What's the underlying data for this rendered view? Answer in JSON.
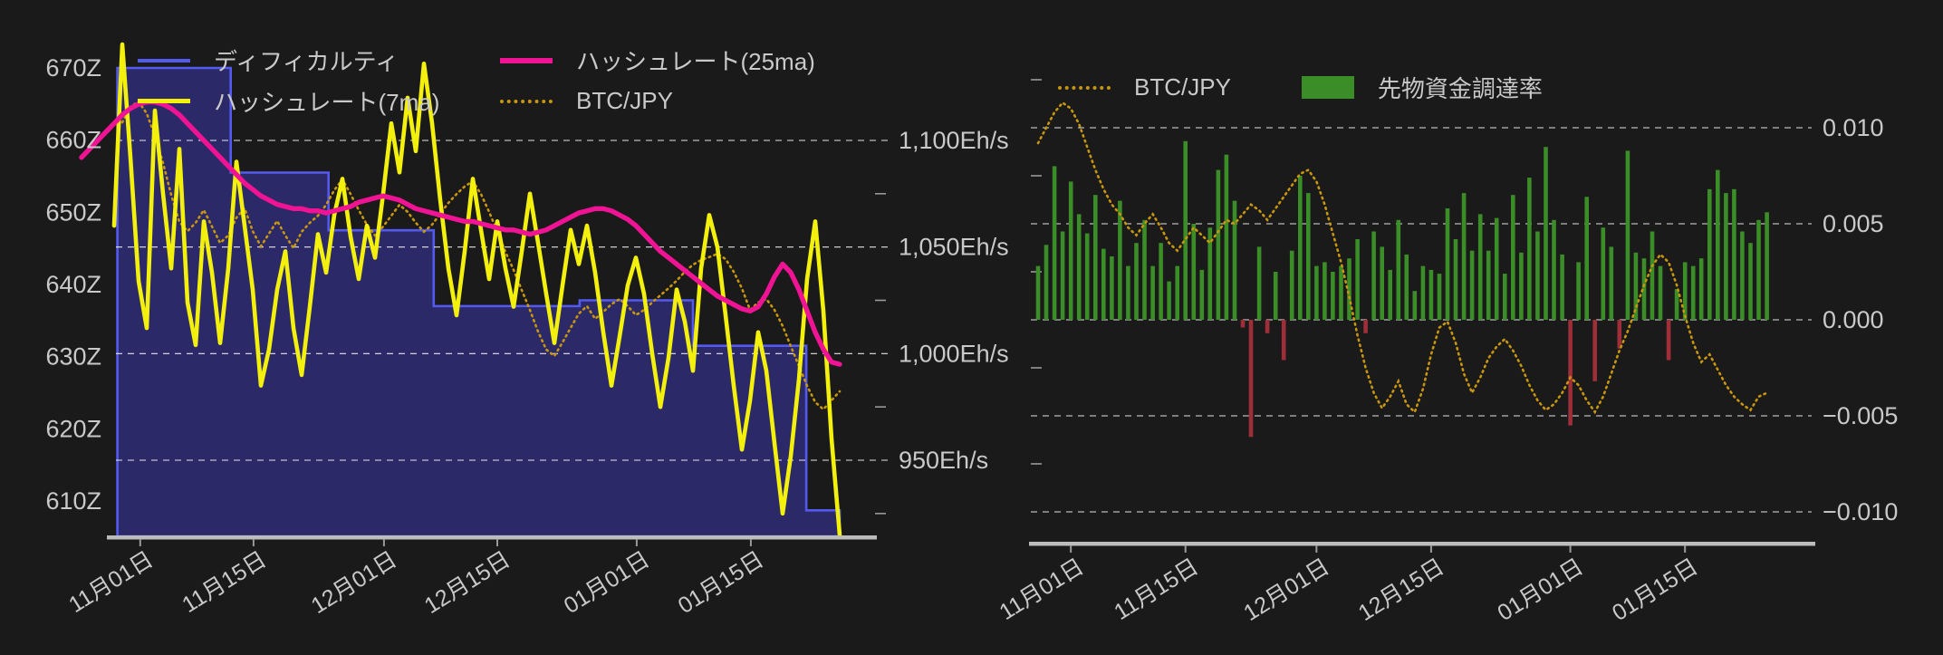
{
  "app": {
    "background_color": "#1a1a1a",
    "text_color": "#c9c9c9",
    "grid_color": "#ffffff",
    "axis_line_color": "#bcbcbc"
  },
  "left_chart": {
    "legend": {
      "difficulty": "ディフィカルティ",
      "hashrate_7ma": "ハッシュレート(7ma)",
      "hashrate_25ma": "ハッシュレート(25ma)",
      "btc_jpy": "BTC/JPY"
    }
  },
  "right_chart": {
    "legend": {
      "btc_jpy": "BTC/JPY",
      "funding_rate": "先物資金調達率"
    }
  },
  "chart_data": [
    {
      "id": "difficulty-hashrate-chart",
      "type": "line",
      "x_axis": {
        "tick_labels": [
          "11月01日",
          "11月15日",
          "12月01日",
          "12月15日",
          "01月01日",
          "01月15日"
        ],
        "tick_day_index": [
          7.2,
          21.1,
          37.1,
          51.0,
          68.1,
          82.1
        ],
        "total_days": 93
      },
      "left_y_axis": {
        "unit": "Z",
        "tick_labels": [
          "670Z",
          "660Z",
          "650Z",
          "640Z",
          "630Z",
          "620Z",
          "610Z"
        ],
        "tick_values": [
          670,
          660,
          650,
          640,
          630,
          620,
          610
        ]
      },
      "right_y_axis": {
        "unit": "Eh/s",
        "tick_labels": [
          "1,100Eh/s",
          "1,050Eh/s",
          "1,000Eh/s",
          "950Eh/s"
        ],
        "tick_values": [
          1100,
          1050,
          1000,
          950
        ],
        "minor_tick_values": [
          1075,
          1025,
          975,
          925
        ]
      },
      "series": [
        {
          "name": "ディフィカルティ",
          "type": "step_area",
          "axis": "left",
          "line_color": "#545af0",
          "fill_color": "#2c2a6a",
          "steps": [
            {
              "from_day": 4.4,
              "to_day": 18.3,
              "value_z": 670
            },
            {
              "from_day": 18.3,
              "to_day": 30.3,
              "value_z": 655.5
            },
            {
              "from_day": 30.3,
              "to_day": 43.2,
              "value_z": 647.5
            },
            {
              "from_day": 43.2,
              "to_day": 61.1,
              "value_z": 637
            },
            {
              "from_day": 61.1,
              "to_day": 75,
              "value_z": 637.8
            },
            {
              "from_day": 75,
              "to_day": 88.9,
              "value_z": 631.5
            },
            {
              "from_day": 88.9,
              "to_day": 93,
              "value_z": 608.7
            }
          ]
        },
        {
          "name": "ハッシュレート(7ma)",
          "type": "line",
          "axis": "right",
          "color": "#f3f00e",
          "values": [
            null,
            null,
            null,
            null,
            1060,
            1145,
            1092,
            1034,
            1012,
            1114,
            1075,
            1040,
            1096,
            1024,
            1004,
            1062,
            1038,
            1005,
            1040,
            1090,
            1060,
            1030,
            985,
            1002,
            1030,
            1048,
            1012,
            990,
            1022,
            1056,
            1038,
            1065,
            1082,
            1055,
            1035,
            1060,
            1045,
            1075,
            1108,
            1085,
            1120,
            1095,
            1136,
            1108,
            1072,
            1040,
            1018,
            1048,
            1082,
            1058,
            1035,
            1062,
            1040,
            1022,
            1048,
            1075,
            1052,
            1028,
            1005,
            1032,
            1058,
            1042,
            1060,
            1038,
            1010,
            985,
            1008,
            1032,
            1045,
            1028,
            1000,
            975,
            998,
            1030,
            1015,
            992,
            1040,
            1065,
            1050,
            1018,
            985,
            955,
            978,
            1010,
            992,
            958,
            925,
            952,
            988,
            1035,
            1062,
            1020,
            960,
            915
          ]
        },
        {
          "name": "ハッシュレート(25ma)",
          "type": "line",
          "axis": "right",
          "color": "#f01495",
          "values": [
            1092,
            1096,
            1100,
            1104,
            1108,
            1112,
            1115,
            1117,
            1118,
            1118,
            1117,
            1115,
            1112,
            1108,
            1104,
            1100,
            1096,
            1092,
            1088,
            1084,
            1080,
            1077,
            1074,
            1072,
            1070,
            1069,
            1068,
            1068,
            1067,
            1067,
            1066,
            1067,
            1068,
            1069,
            1071,
            1072,
            1073,
            1074,
            1073,
            1072,
            1070,
            1068,
            1067,
            1066,
            1065,
            1064,
            1063,
            1062,
            1062,
            1061,
            1060,
            1059,
            1058,
            1058,
            1057,
            1056,
            1057,
            1058,
            1060,
            1062,
            1064,
            1066,
            1067,
            1068,
            1068,
            1067,
            1065,
            1063,
            1060,
            1056,
            1052,
            1048,
            1045,
            1042,
            1039,
            1036,
            1033,
            1030,
            1027,
            1025,
            1023,
            1021,
            1020,
            1022,
            1028,
            1036,
            1042,
            1038,
            1030,
            1020,
            1010,
            1002,
            996,
            995
          ]
        },
        {
          "name": "BTC/JPY",
          "type": "dotted_line",
          "axis": "hidden",
          "color": "#c8960e",
          "values_norm_top0": [
            null,
            null,
            null,
            null,
            null,
            0.106,
            0.073,
            0.062,
            0.087,
            0.135,
            0.192,
            0.26,
            0.317,
            0.337,
            0.319,
            0.292,
            0.327,
            0.362,
            0.346,
            0.308,
            0.288,
            0.337,
            0.369,
            0.342,
            0.315,
            0.346,
            0.373,
            0.338,
            0.319,
            0.304,
            0.281,
            0.25,
            0.227,
            0.258,
            0.292,
            0.323,
            0.346,
            0.327,
            0.304,
            0.281,
            0.296,
            0.319,
            0.338,
            0.323,
            0.3,
            0.277,
            0.258,
            0.242,
            0.231,
            0.258,
            0.296,
            0.338,
            0.381,
            0.419,
            0.462,
            0.504,
            0.55,
            0.588,
            0.602,
            0.573,
            0.542,
            0.512,
            0.496,
            0.523,
            0.508,
            0.492,
            0.481,
            0.496,
            0.515,
            0.504,
            0.488,
            0.473,
            0.458,
            0.442,
            0.423,
            0.408,
            0.398,
            0.392,
            0.385,
            0.396,
            0.423,
            0.458,
            0.504,
            0.488,
            0.481,
            0.504,
            0.538,
            0.581,
            0.623,
            0.665,
            0.7,
            0.715,
            0.696,
            0.677
          ]
        }
      ]
    },
    {
      "id": "funding-rate-chart",
      "type": "bar",
      "x_axis": {
        "tick_labels": [
          "11月01日",
          "11月15日",
          "12月01日",
          "12月15日",
          "01月01日",
          "01月15日"
        ],
        "tick_day_index": [
          4,
          18,
          34,
          48,
          65,
          79
        ],
        "total_days": 89
      },
      "right_y_axis": {
        "tick_labels": [
          "0.010",
          "0.005",
          "0.000",
          "−0.005",
          "−0.010"
        ],
        "tick_values": [
          0.01,
          0.005,
          0.0,
          -0.005,
          -0.01
        ],
        "minor_tick_values": [
          0.0125,
          0.0075,
          0.0025,
          -0.0025,
          -0.0075,
          -0.0125
        ]
      },
      "series": [
        {
          "name": "BTC/JPY",
          "type": "dotted_line",
          "color": "#c8960e",
          "values": [
            0.0092,
            0.01,
            0.0108,
            0.0113,
            0.011,
            0.0102,
            0.009,
            0.0078,
            0.0068,
            0.006,
            0.0055,
            0.0048,
            0.0044,
            0.005,
            0.0055,
            0.0048,
            0.004,
            0.0036,
            0.0042,
            0.0048,
            0.0044,
            0.004,
            0.0046,
            0.0052,
            0.005,
            0.0055,
            0.006,
            0.0057,
            0.0052,
            0.0058,
            0.0064,
            0.007,
            0.0076,
            0.0078,
            0.0072,
            0.006,
            0.0045,
            0.003,
            0.0012,
            -0.0008,
            -0.0025,
            -0.0038,
            -0.0046,
            -0.004,
            -0.0032,
            -0.0044,
            -0.0048,
            -0.0036,
            -0.0018,
            -0.0004,
            -0.0001,
            -0.0012,
            -0.0028,
            -0.0038,
            -0.003,
            -0.002,
            -0.0014,
            -0.001,
            -0.0016,
            -0.0024,
            -0.0034,
            -0.0042,
            -0.0047,
            -0.0044,
            -0.0038,
            -0.003,
            -0.0034,
            -0.0042,
            -0.0048,
            -0.004,
            -0.0028,
            -0.0016,
            -0.0006,
            0.0006,
            0.0018,
            0.0028,
            0.0034,
            0.003,
            0.0018,
            0.0002,
            -0.0012,
            -0.0022,
            -0.0018,
            -0.0026,
            -0.0034,
            -0.004,
            -0.0044,
            -0.0047,
            -0.004,
            -0.0038
          ]
        },
        {
          "name": "先物資金調達率",
          "type": "bar",
          "positive_color": "#3b8d27",
          "negative_color": "#9e2f38",
          "values": [
            0.0028,
            0.0039,
            0.008,
            0.0046,
            0.0072,
            0.0055,
            0.0045,
            0.0065,
            0.0037,
            0.0033,
            0.0062,
            0.0028,
            0.004,
            0.0052,
            0.0028,
            0.004,
            0.002,
            0.0028,
            0.0093,
            0.005,
            0.0026,
            0.0048,
            0.0078,
            0.0086,
            0.0062,
            -0.0004,
            -0.0061,
            0.0038,
            -0.0007,
            0.0025,
            -0.0021,
            0.0036,
            0.0075,
            0.0066,
            0.0028,
            0.003,
            0.0025,
            0.0028,
            0.0032,
            0.0042,
            -0.0007,
            0.0046,
            0.0038,
            0.0026,
            0.0052,
            0.0034,
            0.0015,
            0.0028,
            0.0026,
            0.0024,
            0.0058,
            0.0042,
            0.0066,
            0.0036,
            0.0055,
            0.0036,
            0.0053,
            0.0024,
            0.0065,
            0.0035,
            0.0074,
            0.0046,
            0.009,
            0.0052,
            0.0034,
            -0.0055,
            0.003,
            0.0064,
            -0.0032,
            0.0048,
            0.0038,
            -0.0015,
            0.0088,
            0.0035,
            0.0032,
            0.0046,
            0.0028,
            -0.0021,
            0.0016,
            0.003,
            0.0028,
            0.0032,
            0.0068,
            0.0078,
            0.0066,
            0.0068,
            0.0046,
            0.004,
            0.0052,
            0.0056
          ]
        }
      ]
    }
  ]
}
